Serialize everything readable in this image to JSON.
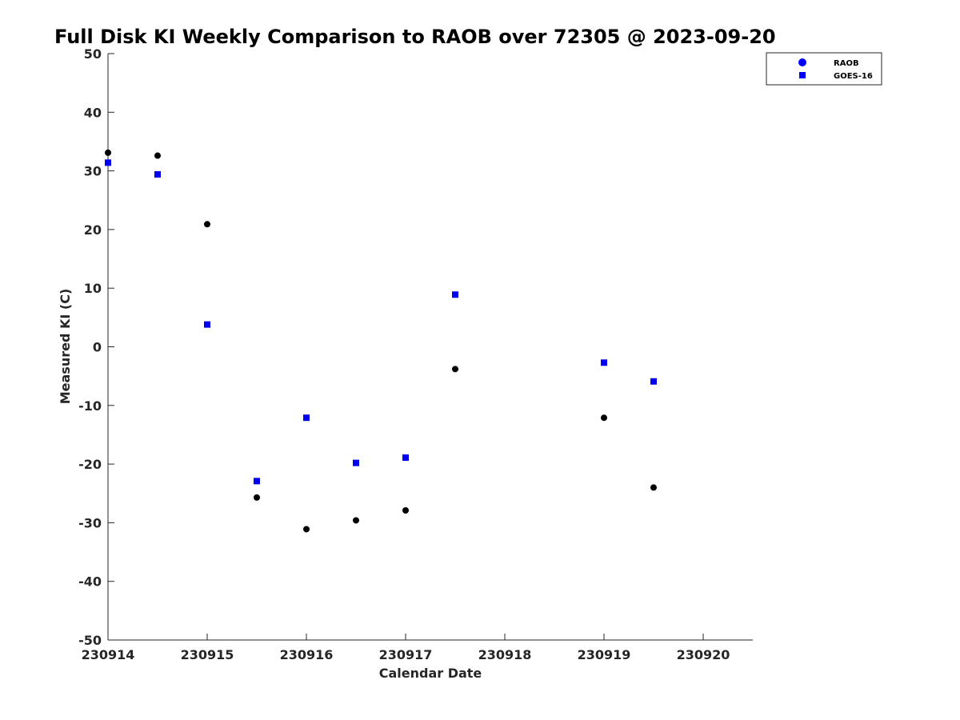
{
  "chart_data": {
    "type": "scatter",
    "title": "Full Disk KI Weekly Comparison to RAOB over 72305 @ 2023-09-20",
    "xlabel": "Calendar Date",
    "ylabel": "Measured KI (C)",
    "xlim": [
      230914,
      230920.5
    ],
    "ylim": [
      -50,
      50
    ],
    "x_ticks": [
      {
        "value": 230914,
        "label": "230914"
      },
      {
        "value": 230915,
        "label": "230915"
      },
      {
        "value": 230916,
        "label": "230916"
      },
      {
        "value": 230917,
        "label": "230917"
      },
      {
        "value": 230918,
        "label": "230918"
      },
      {
        "value": 230919,
        "label": "230919"
      },
      {
        "value": 230920,
        "label": "230920"
      }
    ],
    "y_ticks": [
      {
        "value": 50,
        "label": "50"
      },
      {
        "value": 40,
        "label": "40"
      },
      {
        "value": 30,
        "label": "30"
      },
      {
        "value": 20,
        "label": "20"
      },
      {
        "value": 10,
        "label": "10"
      },
      {
        "value": 0,
        "label": "0"
      },
      {
        "value": -10,
        "label": "-10"
      },
      {
        "value": -20,
        "label": "-20"
      },
      {
        "value": -30,
        "label": "-30"
      },
      {
        "value": -40,
        "label": "-40"
      },
      {
        "value": -50,
        "label": "-50"
      }
    ],
    "grid": false,
    "legend_position": "top-right",
    "series": [
      {
        "name": "RAOB",
        "marker": "circle",
        "color": "#000000",
        "legend_color": "#0000ff",
        "points": [
          {
            "x": 230914.0,
            "y": 33.1
          },
          {
            "x": 230914.5,
            "y": 32.6
          },
          {
            "x": 230915.0,
            "y": 20.9
          },
          {
            "x": 230915.5,
            "y": -25.7
          },
          {
            "x": 230916.0,
            "y": -31.1
          },
          {
            "x": 230916.5,
            "y": -29.6
          },
          {
            "x": 230917.0,
            "y": -27.9
          },
          {
            "x": 230917.5,
            "y": -3.8
          },
          {
            "x": 230919.0,
            "y": -12.1
          },
          {
            "x": 230919.5,
            "y": -24.0
          }
        ]
      },
      {
        "name": "GOES-16",
        "marker": "square",
        "color": "#0000ee",
        "legend_color": "#0000ff",
        "points": [
          {
            "x": 230914.0,
            "y": 31.4
          },
          {
            "x": 230914.5,
            "y": 29.4
          },
          {
            "x": 230915.0,
            "y": 3.8
          },
          {
            "x": 230915.5,
            "y": -22.9
          },
          {
            "x": 230916.0,
            "y": -12.1
          },
          {
            "x": 230916.5,
            "y": -19.8
          },
          {
            "x": 230917.0,
            "y": -18.9
          },
          {
            "x": 230917.5,
            "y": 8.9
          },
          {
            "x": 230919.0,
            "y": -2.7
          },
          {
            "x": 230919.5,
            "y": -5.9
          }
        ]
      }
    ]
  }
}
